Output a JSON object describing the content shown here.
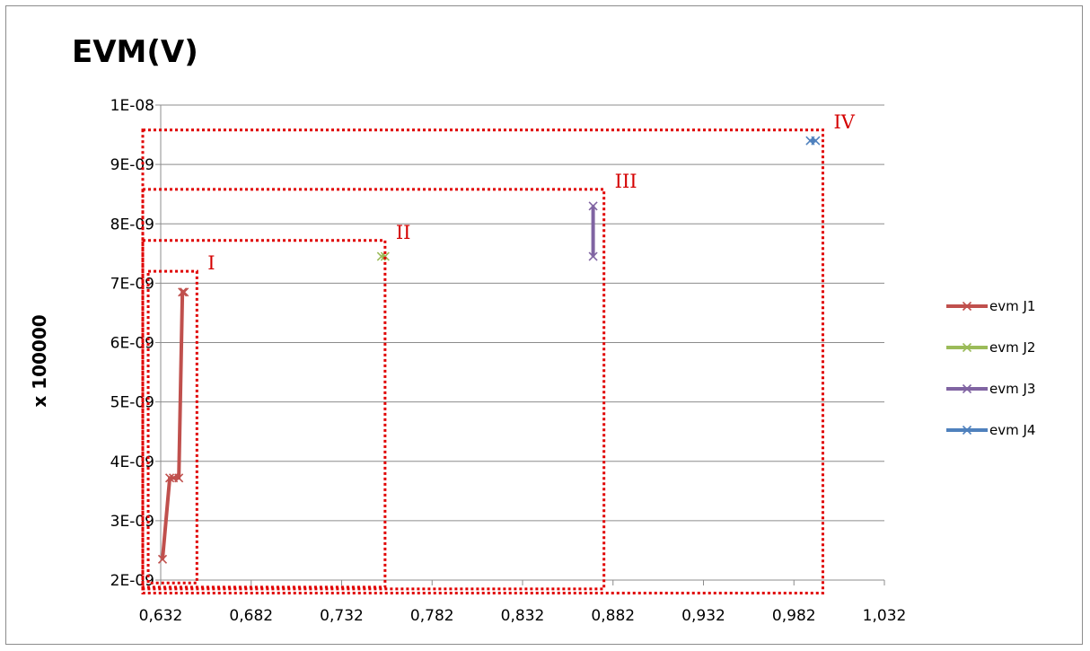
{
  "chart_data": {
    "type": "scatter",
    "title": "EVM(V)",
    "xlabel": "",
    "ylabel": "x 100000",
    "xlim": [
      0.632,
      1.032
    ],
    "ylim": [
      2e-09,
      1e-08
    ],
    "x_ticks": [
      0.632,
      0.682,
      0.732,
      0.782,
      0.832,
      0.882,
      0.932,
      0.982,
      1.032
    ],
    "x_tick_labels": [
      "0,632",
      "0,682",
      "0,732",
      "0,782",
      "0,832",
      "0,882",
      "0,932",
      "0,982",
      "1,032"
    ],
    "y_ticks": [
      2e-09,
      3e-09,
      4e-09,
      5e-09,
      6e-09,
      7e-09,
      8e-09,
      9e-09,
      1e-08
    ],
    "y_tick_labels": [
      "2E-09",
      "3E-09",
      "4E-09",
      "5E-09",
      "6E-09",
      "7E-09",
      "8E-09",
      "9E-09",
      "1E-08"
    ],
    "grid": true,
    "legend_position": "right",
    "series": [
      {
        "name": "evm J1",
        "color": "#c0504d",
        "marker": "x",
        "line": true,
        "points": [
          [
            0.633,
            2.35e-09
          ],
          [
            0.637,
            3.72e-09
          ],
          [
            0.639,
            3.72e-09
          ],
          [
            0.642,
            3.72e-09
          ],
          [
            0.644,
            6.85e-09
          ],
          [
            0.645,
            6.85e-09
          ]
        ]
      },
      {
        "name": "evm J2",
        "color": "#9bbb59",
        "marker": "x",
        "line": true,
        "points": [
          [
            0.754,
            7.45e-09
          ],
          [
            0.756,
            7.45e-09
          ]
        ]
      },
      {
        "name": "evm J3",
        "color": "#8064a2",
        "marker": "x",
        "line": true,
        "points": [
          [
            0.871,
            7.45e-09
          ],
          [
            0.871,
            8.3e-09
          ]
        ]
      },
      {
        "name": "evm J4",
        "color": "#4f81bd",
        "marker": "x",
        "line": true,
        "points": [
          [
            0.991,
            9.4e-09
          ],
          [
            0.994,
            9.4e-09
          ]
        ]
      }
    ],
    "annotations": [
      {
        "label": "I",
        "x_range": [
          0.635,
          0.652
        ],
        "y_range": [
          1.95e-09,
          7.2e-09
        ]
      },
      {
        "label": "II",
        "x_range": [
          0.632,
          0.756
        ],
        "y_range": [
          1.88e-09,
          7.72e-09
        ]
      },
      {
        "label": "III",
        "x_range": [
          0.632,
          0.877
        ],
        "y_range": [
          1.85e-09,
          8.58e-09
        ]
      },
      {
        "label": "IV",
        "x_range": [
          0.632,
          0.998
        ],
        "y_range": [
          1.78e-09,
          9.58e-09
        ]
      }
    ],
    "annotation_color": "#e00000"
  }
}
